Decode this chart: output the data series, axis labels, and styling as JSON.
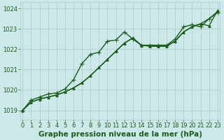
{
  "background_color": "#cce8e8",
  "plot_bg_color": "#cce8e8",
  "grid_color": "#aacccc",
  "line_color_dark": "#1a5c1a",
  "line_color_med": "#2d7a2d",
  "xlabel": "Graphe pression niveau de la mer (hPa)",
  "ylim": [
    1018.55,
    1024.3
  ],
  "xlim": [
    -0.3,
    23.3
  ],
  "yticks": [
    1019,
    1020,
    1021,
    1022,
    1023,
    1024
  ],
  "xticks": [
    0,
    1,
    2,
    3,
    4,
    5,
    6,
    7,
    8,
    9,
    10,
    11,
    12,
    13,
    14,
    15,
    16,
    17,
    18,
    19,
    20,
    21,
    22,
    23
  ],
  "series": [
    {
      "y": [
        1019.0,
        1019.4,
        1019.55,
        1019.65,
        1019.75,
        1019.9,
        1020.1,
        1020.35,
        1020.7,
        1021.1,
        1021.5,
        1021.9,
        1022.3,
        1022.55,
        1022.2,
        1022.15,
        1022.15,
        1022.15,
        1022.4,
        1022.85,
        1023.1,
        1023.25,
        1023.5,
        1023.85
      ],
      "color": "#1a5c1a",
      "lw": 1.0,
      "marker": null,
      "zorder": 2
    },
    {
      "y": [
        1019.0,
        1019.4,
        1019.55,
        1019.65,
        1019.75,
        1019.9,
        1020.1,
        1020.35,
        1020.7,
        1021.1,
        1021.5,
        1021.9,
        1022.3,
        1022.55,
        1022.2,
        1022.15,
        1022.15,
        1022.15,
        1022.4,
        1022.85,
        1023.1,
        1023.25,
        1023.15,
        1023.9
      ],
      "color": "#1a5c1a",
      "lw": 1.0,
      "marker": "^",
      "ms": 2.5,
      "zorder": 3
    },
    {
      "y": [
        1019.0,
        1019.5,
        1019.65,
        1019.8,
        1019.85,
        1020.05,
        1020.5,
        1021.3,
        1021.75,
        1021.85,
        1022.4,
        1022.45,
        1022.85,
        1022.5,
        1022.2,
        1022.2,
        1022.2,
        1022.2,
        1022.5,
        1023.1,
        1023.2,
        1023.1,
        1023.5,
        1023.8
      ],
      "color": "#1a5c1a",
      "lw": 1.0,
      "marker": "+",
      "ms": 4.0,
      "zorder": 4
    }
  ],
  "tick_fontsize": 6,
  "xlabel_fontsize": 7.5
}
